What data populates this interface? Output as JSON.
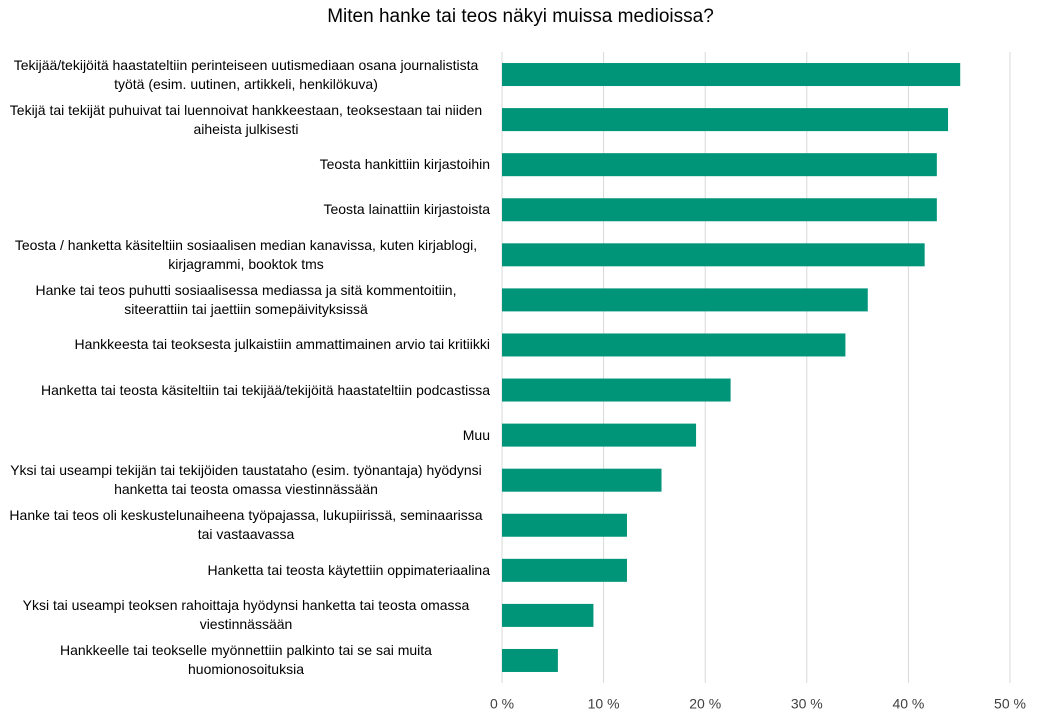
{
  "chart_data": {
    "type": "bar",
    "orientation": "horizontal",
    "title": "Miten hanke tai teos näkyi muissa medioissa?",
    "categories": [
      "Tekijää/tekijöitä haastateltiin perinteiseen uutismediaan osana journalistista työtä (esim. uutinen, artikkeli, henkilökuva)",
      "Tekijä tai tekijät puhuivat tai luennoivat hankkeestaan, teoksestaan tai niiden aiheista julkisesti",
      "Teosta hankittiin kirjastoihin",
      "Teosta lainattiin kirjastoista",
      "Teosta / hanketta käsiteltiin sosiaalisen median kanavissa, kuten kirjablogi, kirjagrammi, booktok tms",
      "Hanke tai teos puhutti sosiaalisessa mediassa ja sitä kommentoitiin, siteerattiin tai jaettiin somepäivityksissä",
      "Hankkeesta tai teoksesta julkaistiin ammattimainen arvio tai kritiikki",
      "Hanketta tai teosta käsiteltiin tai tekijää/tekijöitä haastateltiin podcastissa",
      "Muu",
      "Yksi tai useampi tekijän tai tekijöiden taustataho (esim. työnantaja) hyödynsi hanketta tai teosta omassa viestinnässään",
      "Hanke tai teos oli keskustelunaiheena työpajassa, lukupiirissä, seminaarissa tai vastaavassa",
      "Hanketta tai teosta käytettiin oppimateriaalina",
      "Yksi tai useampi teoksen rahoittaja hyödynsi hanketta tai teosta omassa viestinnässään",
      "Hankkeelle tai teokselle myönnettiin palkinto tai se sai muita huomionosoituksia"
    ],
    "values": [
      45.1,
      43.9,
      42.8,
      42.8,
      41.6,
      36.0,
      33.8,
      22.5,
      19.1,
      15.7,
      12.3,
      12.3,
      9.0,
      5.5
    ],
    "color": "#009479",
    "xlim": [
      0,
      50
    ],
    "xticks": [
      {
        "value": 0,
        "label": "0 %"
      },
      {
        "value": 10,
        "label": "10 %"
      },
      {
        "value": 20,
        "label": "20 %"
      },
      {
        "value": 30,
        "label": "30 %"
      },
      {
        "value": 40,
        "label": "40 %"
      },
      {
        "value": 50,
        "label": "50 %"
      }
    ],
    "grid": true
  }
}
